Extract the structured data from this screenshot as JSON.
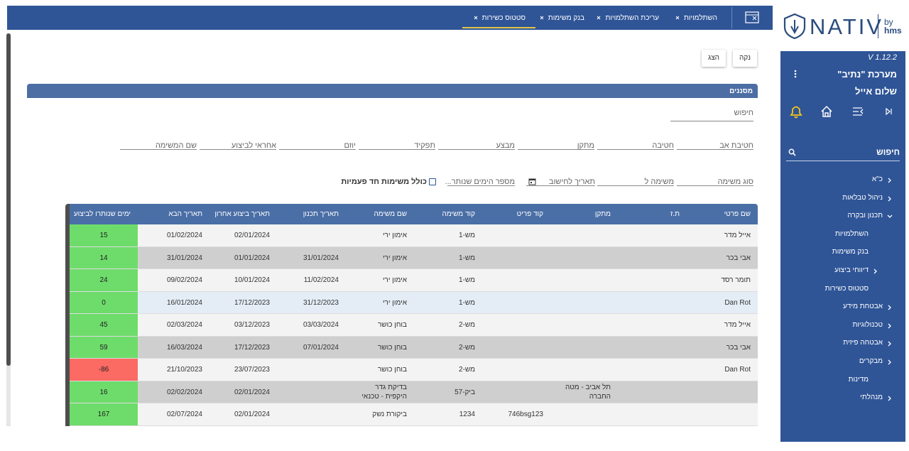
{
  "logo": {
    "brand": "NATIV",
    "by": "by",
    "company": "hms"
  },
  "tabs": [
    {
      "label": "השתלמויות"
    },
    {
      "label": "עריכת השתלמויות"
    },
    {
      "label": "בנק משימות"
    },
    {
      "label": "סטטוס כשירות",
      "active": true
    }
  ],
  "actions": {
    "clear": "נקה",
    "show": "הצג"
  },
  "filters": {
    "title": "מסננים",
    "search": "חיפוש",
    "row1": [
      "חטיבת אב",
      "חטיבה",
      "מתקן",
      "מבצע",
      "תפקיד",
      "יוזם",
      "אחראי לביצוע",
      "שם המשימה"
    ],
    "row2": [
      "סוג משימה",
      "משימה ל",
      "תאריך לחישוב",
      "מספר הימים שנותר..."
    ],
    "checkbox": "כולל משימות חד פעמיות"
  },
  "table": {
    "columns": [
      "שם פרטי",
      "ת.ז",
      "מתקן",
      "קוד פריט",
      "קוד משימה",
      "שם משימה",
      "תאריך תכנון",
      "תאריך ביצוע אחרון",
      "תאריך הבא",
      "ימים שנותרו לביצוע"
    ],
    "rows": [
      [
        "אייל מדר",
        null,
        null,
        null,
        "מש-1",
        "אימון ירי",
        null,
        "02/01/2024",
        "01/02/2024",
        15
      ],
      [
        "אבי בכר",
        null,
        null,
        null,
        "מש-1",
        "אימון ירי",
        "31/01/2024",
        "01/01/2024",
        "31/01/2024",
        14
      ],
      [
        "תומר רסד",
        null,
        null,
        null,
        "מש-1",
        "אימון ירי",
        "11/02/2024",
        "10/01/2024",
        "09/02/2024",
        24
      ],
      [
        "Dan Rot",
        null,
        null,
        null,
        "מש-1",
        "אימון ירי",
        "31/12/2023",
        "17/12/2023",
        "16/01/2024",
        0
      ],
      [
        "אייל מדר",
        null,
        null,
        null,
        "מש-2",
        "בוחן כושר",
        "03/03/2024",
        "03/12/2023",
        "02/03/2024",
        45
      ],
      [
        "אבי בכר",
        null,
        null,
        null,
        "מש-2",
        "בוחן כושר",
        "07/01/2024",
        "17/12/2023",
        "16/03/2024",
        59
      ],
      [
        "Dan Rot",
        null,
        null,
        null,
        "מש-2",
        "בוחן כושר",
        null,
        "23/07/2023",
        "21/10/2023",
        -86
      ],
      [
        null,
        null,
        "תל אביב - מטה החברה",
        null,
        "ביק-57",
        "בדיקת גדר היקפית - טכנאי",
        null,
        "02/01/2024",
        "02/02/2024",
        16
      ],
      [
        null,
        null,
        null,
        "746bsg123",
        "1234",
        "ביקורת נשק",
        null,
        "02/01/2024",
        "02/07/2024",
        167
      ]
    ],
    "selected_row": 3
  },
  "sidebar": {
    "version": "V 1.12.2",
    "system": "מערכת \"נתיב\"",
    "greeting": "שלום אייל",
    "search": "חיפוש",
    "menu": [
      {
        "label": "כ\"א",
        "level": 1,
        "chevron": "right"
      },
      {
        "label": "ניהול טבלאות",
        "level": 1,
        "chevron": "right"
      },
      {
        "label": "תכנון ובקרה",
        "level": 1,
        "chevron": "down"
      },
      {
        "label": "השתלמויות",
        "level": 2
      },
      {
        "label": "בנק משימות",
        "level": 2
      },
      {
        "label": "דיווחי ביצוע",
        "level": 2,
        "chevron": "right"
      },
      {
        "label": "סטטוס כשירות",
        "level": 2
      },
      {
        "label": "אבטחת מידע",
        "level": 1,
        "chevron": "right"
      },
      {
        "label": "טכנולוגיות",
        "level": 1,
        "chevron": "right"
      },
      {
        "label": "אבטחה פיזית",
        "level": 1,
        "chevron": "right"
      },
      {
        "label": "מבקרים",
        "level": 1,
        "chevron": "right"
      },
      {
        "label": "מדינות",
        "level": 2
      },
      {
        "label": "מנהלתי",
        "level": 1,
        "chevron": "right"
      }
    ]
  }
}
